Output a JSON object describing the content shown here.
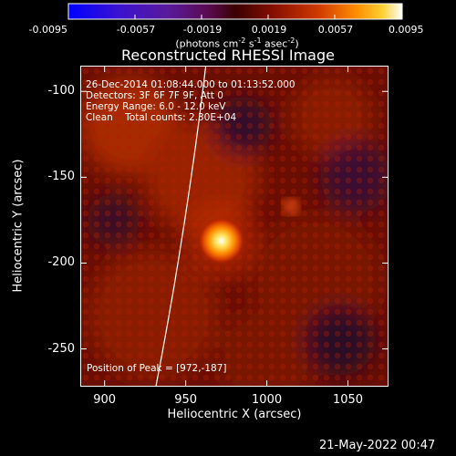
{
  "colorbar": {
    "ticks": [
      "-0.0095",
      "-0.0057",
      "-0.0019",
      "0.0019",
      "0.0057",
      "0.0095"
    ],
    "units_main": "(photons cm",
    "units_sup1": "-2",
    "units_mid1": " s",
    "units_sup2": "-1",
    "units_mid2": " asec",
    "units_sup3": "-2",
    "units_end": ")",
    "range": [
      -0.0095,
      0.0095
    ]
  },
  "chart_data": {
    "type": "heatmap",
    "title": "Reconstructed RHESSI Image",
    "xlabel": "Heliocentric X (arcsec)",
    "ylabel": "Heliocentric Y (arcsec)",
    "xlim": [
      885,
      1075
    ],
    "ylim": [
      -272,
      -85
    ],
    "x_ticks": [
      900,
      950,
      1000,
      1050
    ],
    "y_ticks": [
      -100,
      -150,
      -200,
      -250
    ],
    "peak": [
      972,
      -187
    ],
    "secondary_source": [
      1015,
      -167
    ],
    "annotations": [
      "26-Dec-2014 01:08:44.000 to 01:13:52.000",
      "Detectors: 3F 6F 7F 9F, Att 0",
      "Energy Range: 6.0 - 12.0 keV",
      "Clean    Total counts: 2.30E+04"
    ],
    "peak_label": "Position of Peak = [972,-187]"
  },
  "footer": {
    "date": "21-May-2022 00:47"
  }
}
